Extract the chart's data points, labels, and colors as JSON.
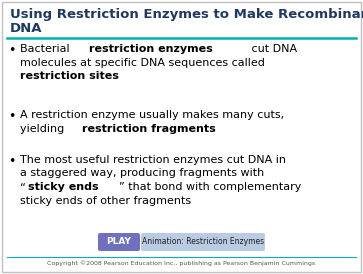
{
  "title_line1": "Using Restriction Enzymes to Make Recombinant",
  "title_line2": "DNA",
  "title_color": "#1F3864",
  "title_fontsize": 9.5,
  "bg_color": "#FFFFFF",
  "divider_color": "#00B0B0",
  "bullet_points": [
    {
      "lines": [
        [
          {
            "text": "Bacterial ",
            "bold": false
          },
          {
            "text": "restriction enzymes",
            "bold": true
          },
          {
            "text": " cut DNA",
            "bold": false
          }
        ],
        [
          {
            "text": "molecules at specific DNA sequences called",
            "bold": false
          }
        ],
        [
          {
            "text": "restriction sites",
            "bold": true
          }
        ]
      ]
    },
    {
      "lines": [
        [
          {
            "text": "A restriction enzyme usually makes many cuts,",
            "bold": false
          }
        ],
        [
          {
            "text": "yielding ",
            "bold": false
          },
          {
            "text": "restriction fragments",
            "bold": true
          }
        ]
      ]
    },
    {
      "lines": [
        [
          {
            "text": "The most useful restriction enzymes cut DNA in",
            "bold": false
          }
        ],
        [
          {
            "text": "a staggered way, producing fragments with",
            "bold": false
          }
        ],
        [
          {
            "text": "“",
            "bold": false
          },
          {
            "text": "sticky ends",
            "bold": true
          },
          {
            "text": "” that bond with complementary",
            "bold": false
          }
        ],
        [
          {
            "text": "sticky ends of other fragments",
            "bold": false
          }
        ]
      ]
    }
  ],
  "bullet_color": "#000000",
  "bullet_fontsize": 8.0,
  "play_button_color": "#7070C0",
  "play_text": "PLAY",
  "animation_bg": "#B8CCE4",
  "animation_text": "Animation: Restriction Enzymes",
  "copyright_text": "Copyright ©2008 Pearson Education Inc., publishing as Pearson Benjamin Cummings",
  "copyright_fontsize": 4.5,
  "border_color": "#C0C0C0"
}
